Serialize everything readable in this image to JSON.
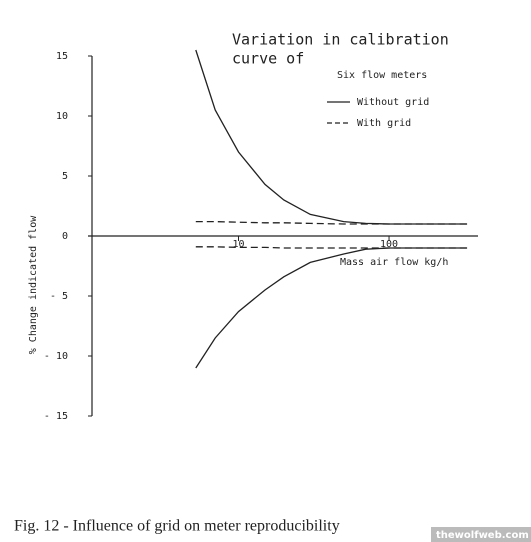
{
  "chart_data": {
    "type": "line",
    "title_lines": [
      "Variation in calibration",
      "curve of"
    ],
    "subtitle": "Six flow meters",
    "xlabel": "Mass air flow kg/h",
    "ylabel": "% Change indicated flow",
    "caption": "Fig. 12 - Influence of grid on meter reproducibility",
    "watermark": "thewolfweb.com",
    "xscale": "log",
    "xlim": [
      1,
      390
    ],
    "xticks": [
      10,
      100
    ],
    "ylim": [
      -15,
      15
    ],
    "yticks": [
      15,
      10,
      5,
      0,
      {
        "value": -5,
        "label": "- 5"
      },
      {
        "value": -10,
        "label": "- 10"
      },
      {
        "value": -15,
        "label": "- 15"
      }
    ],
    "x": [
      5.2,
      7,
      10,
      15,
      20,
      30,
      50,
      70,
      100,
      150,
      200,
      330
    ],
    "series": [
      {
        "name": "Without grid",
        "color": "#222222",
        "dash": "solid",
        "values": [
          15.5,
          10.5,
          7,
          4.3,
          3,
          1.8,
          1.2,
          1.05,
          1,
          1,
          1,
          1
        ],
        "lower_values": [
          -11,
          -8.5,
          -6.3,
          -4.5,
          -3.4,
          -2.2,
          -1.5,
          -1.1,
          -1,
          -1,
          -1,
          -1
        ]
      },
      {
        "name": "With grid",
        "color": "#222222",
        "dash": "dashed",
        "values": [
          1.2,
          1.2,
          1.15,
          1.1,
          1.1,
          1.05,
          1,
          1,
          1,
          1,
          1,
          1
        ],
        "lower_values": [
          -0.9,
          -0.9,
          -0.95,
          -0.95,
          -1,
          -1,
          -1,
          -1,
          -1,
          -1,
          -1,
          -1
        ]
      }
    ]
  }
}
